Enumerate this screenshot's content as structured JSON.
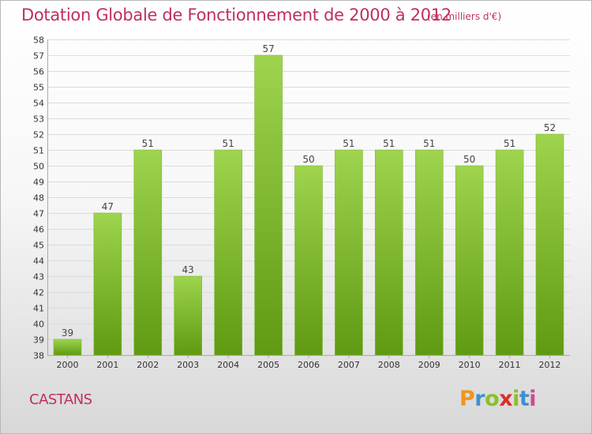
{
  "header": {
    "title": "Dotation Globale de Fonctionnement de 2000 à 2012",
    "subtitle": "(en milliers d'€)"
  },
  "footer": {
    "commune": "CASTANS",
    "brand_letters": [
      "P",
      "r",
      "o",
      "x",
      "i",
      "t",
      "i"
    ]
  },
  "colors": {
    "title": "#c0305a",
    "bar_top": "#9ed44e",
    "bar_bottom": "#5f9a12",
    "brand": [
      "#f0951e",
      "#3f8fd0",
      "#8cbf2a",
      "#d8302e",
      "#8cbf2a",
      "#3f8fd0",
      "#d04a8c"
    ]
  },
  "chart_data": {
    "type": "bar",
    "title": "Dotation Globale de Fonctionnement de 2000 à 2012",
    "subtitle": "(en milliers d'€)",
    "categories": [
      "2000",
      "2001",
      "2002",
      "2003",
      "2004",
      "2005",
      "2006",
      "2007",
      "2008",
      "2009",
      "2010",
      "2011",
      "2012"
    ],
    "values": [
      39,
      47,
      51,
      43,
      51,
      57,
      50,
      51,
      51,
      51,
      50,
      51,
      52
    ],
    "ylim": [
      38,
      58
    ],
    "ytick_step": 1,
    "grid": true,
    "xlabel": "",
    "ylabel": ""
  }
}
